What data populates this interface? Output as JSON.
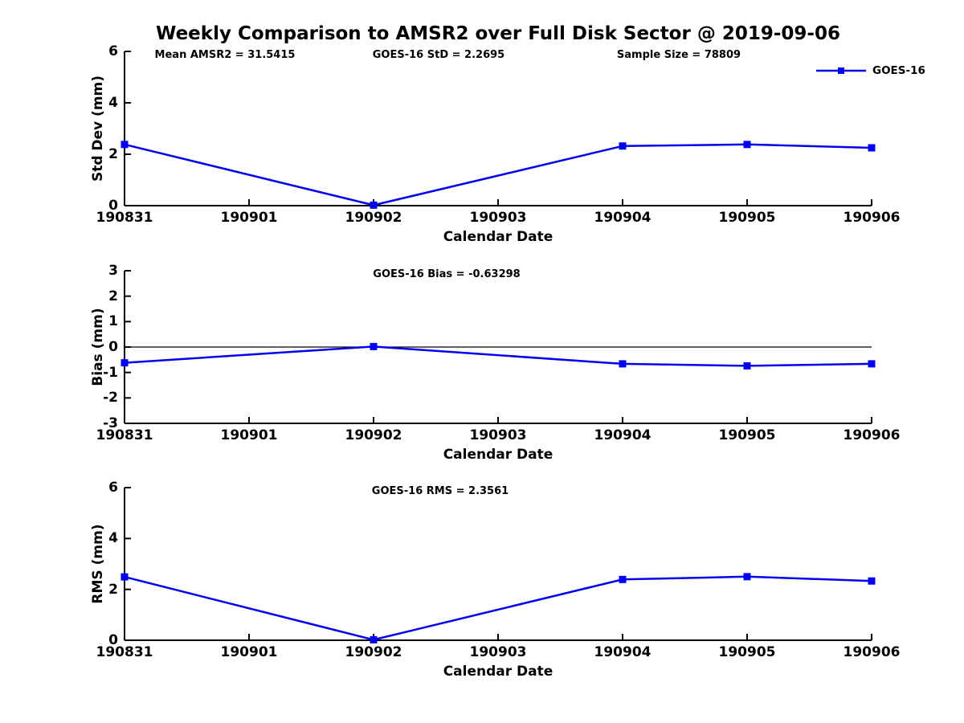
{
  "title": "Weekly Comparison to AMSR2 over Full Disk Sector @ 2019-09-06",
  "legend": {
    "label": "GOES-16",
    "position": "top-right"
  },
  "colors": {
    "series": "#0000EE",
    "axis": "#000000",
    "background": "#FFFFFF",
    "text": "#000000"
  },
  "chart_data": [
    {
      "type": "line",
      "name": "std-dev-panel",
      "annotations": [
        "Mean AMSR2 = 31.5415",
        "GOES-16 StD = 2.2695",
        "Sample Size = 78809"
      ],
      "categories": [
        "190831",
        "190901",
        "190902",
        "190903",
        "190904",
        "190905",
        "190906"
      ],
      "series": [
        {
          "name": "GOES-16",
          "values": [
            2.38,
            null,
            0.02,
            null,
            2.32,
            2.38,
            2.25
          ]
        }
      ],
      "xlabel": "Calendar Date",
      "ylabel": "Std Dev (mm)",
      "ylim": [
        0,
        6
      ],
      "yticks": [
        0,
        2,
        4,
        6
      ],
      "grid": false,
      "zero_line": false,
      "marker": "square",
      "legend_position": "top-right"
    },
    {
      "type": "line",
      "name": "bias-panel",
      "annotations": [
        "GOES-16 Bias  = -0.63298"
      ],
      "categories": [
        "190831",
        "190901",
        "190902",
        "190903",
        "190904",
        "190905",
        "190906"
      ],
      "series": [
        {
          "name": "GOES-16",
          "values": [
            -0.62,
            null,
            0.02,
            null,
            -0.66,
            -0.74,
            -0.66
          ]
        }
      ],
      "xlabel": "Calendar Date",
      "ylabel": "Bias (mm)",
      "ylim": [
        -3,
        3
      ],
      "yticks": [
        -3,
        -2,
        -1,
        0,
        1,
        2,
        3
      ],
      "grid": false,
      "zero_line": true,
      "marker": "square",
      "legend_position": "none"
    },
    {
      "type": "line",
      "name": "rms-panel",
      "annotations": [
        "GOES-16 RMS = 2.3561"
      ],
      "categories": [
        "190831",
        "190901",
        "190902",
        "190903",
        "190904",
        "190905",
        "190906"
      ],
      "series": [
        {
          "name": "GOES-16",
          "values": [
            2.49,
            null,
            0.02,
            null,
            2.39,
            2.5,
            2.33
          ]
        }
      ],
      "xlabel": "Calendar Date",
      "ylabel": "RMS (mm)",
      "ylim": [
        0,
        6
      ],
      "yticks": [
        0,
        2,
        4,
        6
      ],
      "grid": false,
      "zero_line": false,
      "marker": "square",
      "legend_position": "none"
    }
  ]
}
